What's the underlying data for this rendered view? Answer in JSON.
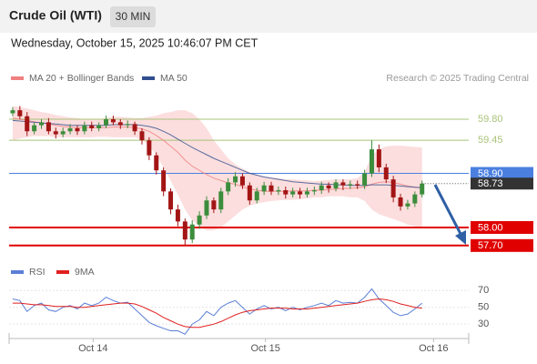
{
  "header": {
    "title": "Crude Oil (WTI)",
    "timeframe": "30 MIN",
    "datetime": "Wednesday, October 15, 2025 10:46:07 PM CET"
  },
  "chart_data": [
    {
      "type": "candlestick",
      "credit": "Research © 2025 Trading Central",
      "x": [
        0,
        1,
        2,
        3,
        4,
        5,
        6,
        7,
        8,
        9,
        10,
        11,
        12,
        13,
        14,
        15,
        16,
        17,
        18,
        19,
        20,
        21,
        22,
        23,
        24,
        25,
        26,
        27,
        28,
        29,
        30,
        31,
        32,
        33,
        34,
        35,
        36,
        37,
        38,
        39,
        40,
        41,
        42,
        43,
        44,
        45,
        46,
        47,
        48,
        49,
        50,
        51,
        52,
        53,
        54,
        55,
        56,
        57
      ],
      "open": [
        59.9,
        59.95,
        59.85,
        59.6,
        59.7,
        59.75,
        59.6,
        59.55,
        59.6,
        59.65,
        59.6,
        59.7,
        59.65,
        59.7,
        59.8,
        59.75,
        59.7,
        59.72,
        59.6,
        59.45,
        59.2,
        58.95,
        58.6,
        58.3,
        58.1,
        57.8,
        58.05,
        58.2,
        58.45,
        58.3,
        58.6,
        58.75,
        58.85,
        58.7,
        58.45,
        58.6,
        58.7,
        58.6,
        58.62,
        58.55,
        58.6,
        58.55,
        58.6,
        58.62,
        58.7,
        58.65,
        58.75,
        58.7,
        58.72,
        58.7,
        58.9,
        59.3,
        59.0,
        58.8,
        58.5,
        58.35,
        58.4,
        58.55
      ],
      "high": [
        60.0,
        60.02,
        59.92,
        59.75,
        59.8,
        59.82,
        59.66,
        59.66,
        59.72,
        59.7,
        59.76,
        59.76,
        59.75,
        59.86,
        59.86,
        59.8,
        59.78,
        59.76,
        59.65,
        59.5,
        59.25,
        59.0,
        58.65,
        58.38,
        58.15,
        58.12,
        58.27,
        58.52,
        58.5,
        58.66,
        58.82,
        58.92,
        58.9,
        58.75,
        58.66,
        58.76,
        58.76,
        58.68,
        58.68,
        58.66,
        58.66,
        58.66,
        58.68,
        58.76,
        58.75,
        58.8,
        58.8,
        58.78,
        58.78,
        58.96,
        59.45,
        59.38,
        59.06,
        58.86,
        58.56,
        58.46,
        58.6,
        58.78
      ],
      "low": [
        59.85,
        59.8,
        59.52,
        59.55,
        59.64,
        59.55,
        59.48,
        59.5,
        59.55,
        59.54,
        59.55,
        59.6,
        59.6,
        59.65,
        59.7,
        59.64,
        59.65,
        59.54,
        59.38,
        59.12,
        58.88,
        58.52,
        58.22,
        58.02,
        57.7,
        57.74,
        57.98,
        58.14,
        58.24,
        58.24,
        58.54,
        58.68,
        58.64,
        58.38,
        58.4,
        58.54,
        58.54,
        58.54,
        58.48,
        58.5,
        58.48,
        58.5,
        58.54,
        58.56,
        58.58,
        58.6,
        58.62,
        58.64,
        58.64,
        58.64,
        58.84,
        58.92,
        58.74,
        58.42,
        58.28,
        58.3,
        58.34,
        58.5
      ],
      "close": [
        59.95,
        59.85,
        59.6,
        59.7,
        59.75,
        59.6,
        59.55,
        59.6,
        59.65,
        59.6,
        59.7,
        59.65,
        59.7,
        59.8,
        59.75,
        59.7,
        59.72,
        59.6,
        59.45,
        59.2,
        58.95,
        58.6,
        58.3,
        58.1,
        57.8,
        58.05,
        58.2,
        58.45,
        58.3,
        58.6,
        58.75,
        58.85,
        58.7,
        58.45,
        58.6,
        58.7,
        58.6,
        58.62,
        58.55,
        58.6,
        58.55,
        58.6,
        58.62,
        58.7,
        58.65,
        58.75,
        58.7,
        58.72,
        58.7,
        58.9,
        59.3,
        59.0,
        58.8,
        58.5,
        58.35,
        58.4,
        58.55,
        58.73
      ],
      "up_color": "#3c8d3c",
      "down_color": "#a31515",
      "overlays": [
        {
          "name": "MA 20 + Bollinger Bands",
          "color": "#f08080",
          "band_color": "#fbd0d0",
          "values": [
            59.82,
            59.8,
            59.78,
            59.76,
            59.74,
            59.72,
            59.7,
            59.68,
            59.67,
            59.66,
            59.66,
            59.66,
            59.66,
            59.66,
            59.67,
            59.67,
            59.67,
            59.66,
            59.64,
            59.6,
            59.53,
            59.45,
            59.35,
            59.25,
            59.12,
            59.02,
            58.95,
            58.88,
            58.82,
            58.78,
            58.74,
            58.72,
            58.68,
            58.64,
            58.62,
            58.6,
            58.6,
            58.6,
            58.6,
            58.61,
            58.61,
            58.61,
            58.62,
            58.62,
            58.63,
            58.64,
            58.65,
            58.65,
            58.66,
            58.68,
            58.72,
            58.75,
            58.76,
            58.75,
            58.72,
            58.69,
            58.67,
            58.66
          ],
          "upper": [
            60.02,
            60.0,
            59.98,
            59.95,
            59.92,
            59.9,
            59.87,
            59.85,
            59.83,
            59.82,
            59.8,
            59.8,
            59.8,
            59.82,
            59.84,
            59.84,
            59.83,
            59.82,
            59.82,
            59.84,
            59.86,
            59.9,
            59.92,
            59.95,
            59.95,
            59.9,
            59.8,
            59.65,
            59.45,
            59.3,
            59.15,
            59.05,
            58.98,
            58.92,
            58.88,
            58.85,
            58.83,
            58.82,
            58.8,
            58.8,
            58.79,
            58.78,
            58.77,
            58.78,
            58.79,
            58.8,
            58.8,
            58.8,
            58.82,
            58.92,
            59.2,
            59.3,
            59.35,
            59.36,
            59.36,
            59.35,
            59.34,
            59.33
          ],
          "lower": [
            59.45,
            59.48,
            59.5,
            59.52,
            59.52,
            59.52,
            59.5,
            59.5,
            59.5,
            59.5,
            59.5,
            59.5,
            59.51,
            59.51,
            59.5,
            59.5,
            59.5,
            59.5,
            59.46,
            59.36,
            59.2,
            59.0,
            58.78,
            58.55,
            58.3,
            58.12,
            58.02,
            57.95,
            57.95,
            58.0,
            58.1,
            58.2,
            58.3,
            58.36,
            58.4,
            58.42,
            58.44,
            58.45,
            58.46,
            58.46,
            58.47,
            58.48,
            58.5,
            58.5,
            58.52,
            58.52,
            58.52,
            58.5,
            58.5,
            58.44,
            58.3,
            58.22,
            58.18,
            58.14,
            58.1,
            58.05,
            58.02,
            58.0
          ]
        },
        {
          "name": "MA 50",
          "color": "#2f4f8f",
          "values": [
            59.78,
            59.77,
            59.76,
            59.75,
            59.74,
            59.73,
            59.72,
            59.71,
            59.7,
            59.7,
            59.7,
            59.7,
            59.7,
            59.7,
            59.71,
            59.71,
            59.71,
            59.71,
            59.7,
            59.68,
            59.65,
            59.6,
            59.54,
            59.47,
            59.4,
            59.33,
            59.27,
            59.21,
            59.15,
            59.1,
            59.05,
            59.0,
            58.95,
            58.9,
            58.87,
            58.84,
            58.82,
            58.8,
            58.78,
            58.76,
            58.75,
            58.74,
            58.73,
            58.72,
            58.72,
            58.71,
            58.71,
            58.7,
            58.7,
            58.7,
            58.71,
            58.71,
            58.71,
            58.7,
            58.69,
            58.68,
            58.67,
            58.66
          ]
        }
      ],
      "levels": [
        {
          "value": 59.8,
          "label": "59.80",
          "color": "#a8c47a",
          "style": "text"
        },
        {
          "value": 59.45,
          "label": "59.45",
          "color": "#a8c47a",
          "style": "text"
        },
        {
          "value": 58.9,
          "label": "58.90",
          "color": "#4a7fe0",
          "style": "box"
        },
        {
          "value": 58.0,
          "label": "58.00",
          "color": "#e00000",
          "style": "box"
        },
        {
          "value": 57.7,
          "label": "57.70",
          "color": "#e00000",
          "style": "box"
        }
      ],
      "last": {
        "value": 58.73,
        "label": "58.73",
        "color": "#333333"
      },
      "xlim": [
        -0.5,
        63.5
      ],
      "ylim": [
        57.47,
        60.27
      ]
    },
    {
      "type": "line",
      "series": [
        {
          "name": "RSI",
          "color": "#5b7fd6",
          "values": [
            60,
            58,
            45,
            52,
            55,
            47,
            45,
            50,
            52,
            48,
            55,
            52,
            55,
            62,
            58,
            55,
            56,
            48,
            40,
            32,
            28,
            25,
            22,
            22,
            18,
            30,
            35,
            45,
            40,
            50,
            55,
            58,
            50,
            42,
            48,
            52,
            48,
            50,
            46,
            50,
            47,
            50,
            52,
            55,
            52,
            58,
            55,
            56,
            55,
            62,
            72,
            60,
            52,
            44,
            40,
            42,
            48,
            55
          ]
        },
        {
          "name": "9MA",
          "color": "#e02020",
          "values": [
            55,
            55,
            54,
            53,
            53,
            52,
            51,
            51,
            51,
            50,
            50,
            51,
            52,
            53,
            54,
            55,
            55,
            54,
            51,
            47,
            43,
            38,
            34,
            30,
            27,
            26,
            26,
            28,
            30,
            33,
            37,
            41,
            44,
            46,
            47,
            48,
            49,
            49,
            49,
            48,
            48,
            48,
            49,
            50,
            51,
            52,
            53,
            54,
            55,
            57,
            59,
            60,
            59,
            57,
            54,
            52,
            50,
            49
          ]
        }
      ],
      "xlim": [
        -0.5,
        63.5
      ],
      "ylim": [
        15,
        80
      ],
      "yticks": [
        30,
        50,
        70
      ],
      "xticks": [
        {
          "value": 11.2,
          "label": "Oct 14"
        },
        {
          "value": 35.2,
          "label": "Oct 15"
        },
        {
          "value": 58.6,
          "label": "Oct 16"
        }
      ]
    }
  ]
}
